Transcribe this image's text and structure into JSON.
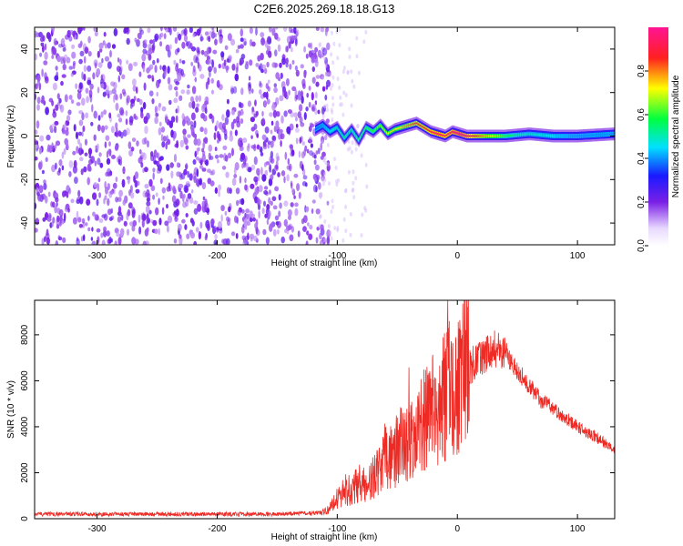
{
  "figure_title": "C2E6.2025.269.18.18.G13",
  "chart_data": [
    {
      "id": "spectrogram",
      "type": "heatmap",
      "title": "C2E6.2025.269.18.18.G13",
      "xlabel": "Height of straight line (km)",
      "ylabel": "Frequency (Hz)",
      "xlim": [
        -352,
        131
      ],
      "ylim": [
        -50,
        50
      ],
      "xticks": [
        -300,
        -200,
        -100,
        0,
        100
      ],
      "yticks": [
        -40,
        -20,
        0,
        20,
        40
      ],
      "noise_region_x": [
        -352,
        -115
      ],
      "signal_track": {
        "x": [
          -118,
          -112,
          -106,
          -100,
          -94,
          -88,
          -82,
          -76,
          -70,
          -64,
          -58,
          -52,
          -46,
          -40,
          -34,
          -28,
          -22,
          -16,
          -10,
          -4,
          2,
          8,
          20,
          40,
          60,
          80,
          100,
          131
        ],
        "freq": [
          3,
          5,
          2,
          4,
          -1,
          3,
          -2,
          4,
          2,
          5,
          1,
          3,
          4,
          5,
          6,
          4,
          2,
          1,
          0,
          2,
          1,
          0,
          0,
          0,
          1,
          0,
          0,
          1
        ],
        "amplitude": [
          0.35,
          0.4,
          0.45,
          0.5,
          0.55,
          0.55,
          0.6,
          0.6,
          0.6,
          0.65,
          0.7,
          0.7,
          0.75,
          0.8,
          0.85,
          0.85,
          0.9,
          0.95,
          0.9,
          0.95,
          1.0,
          0.95,
          0.8,
          0.6,
          0.5,
          0.45,
          0.4,
          0.4
        ]
      },
      "colorbar": {
        "label": "Normalized spectral amplitude",
        "range": [
          0,
          1
        ],
        "ticks": [
          0.0,
          0.2,
          0.4,
          0.6,
          0.8
        ],
        "tick_labels": [
          "0.0",
          "0.2",
          "0.4",
          "0.6",
          "0.8"
        ]
      }
    },
    {
      "id": "snr",
      "type": "line",
      "xlabel": "Height of straight line (km)",
      "ylabel": "SNR (10 * v/v)",
      "xlim": [
        -352,
        131
      ],
      "ylim": [
        0,
        9500
      ],
      "xticks": [
        -300,
        -200,
        -100,
        0,
        100
      ],
      "yticks": [
        0,
        2000,
        4000,
        6000,
        8000
      ],
      "series": [
        {
          "name": "SNR",
          "color": "#ee2a24",
          "x": [
            -352,
            -300,
            -250,
            -200,
            -150,
            -120,
            -110,
            -105,
            -100,
            -95,
            -90,
            -85,
            -80,
            -75,
            -70,
            -65,
            -60,
            -55,
            -50,
            -45,
            -40,
            -35,
            -30,
            -25,
            -20,
            -15,
            -10,
            -5,
            0,
            5,
            10,
            15,
            20,
            25,
            30,
            35,
            40,
            45,
            50,
            60,
            70,
            80,
            90,
            100,
            110,
            120,
            131
          ],
          "y": [
            200,
            200,
            200,
            200,
            200,
            250,
            300,
            500,
            900,
            1200,
            1000,
            1400,
            1500,
            1300,
            1800,
            2000,
            2600,
            2700,
            3000,
            3300,
            3600,
            4000,
            4200,
            4500,
            4800,
            5000,
            5500,
            6000,
            5500,
            6500,
            6600,
            6800,
            7000,
            7300,
            7400,
            7500,
            7300,
            6800,
            6400,
            5800,
            5100,
            4800,
            4400,
            4000,
            3700,
            3400,
            3000
          ]
        }
      ]
    }
  ]
}
